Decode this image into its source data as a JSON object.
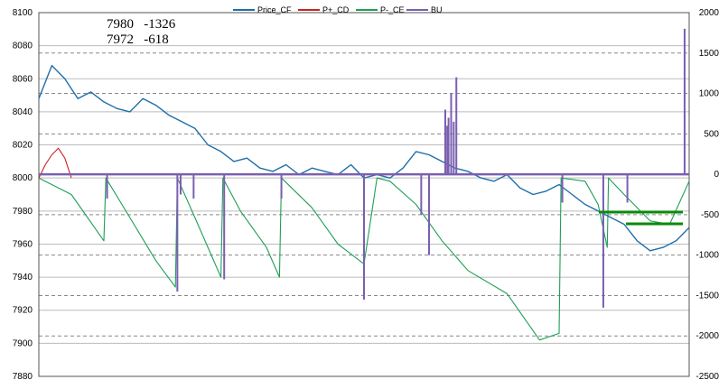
{
  "chart_data": {
    "type": "line",
    "title": "",
    "xlabel": "",
    "ylabel": "",
    "ylim": [
      7880,
      8100
    ],
    "y2lim": [
      -2500,
      2000
    ],
    "left_ticks": [
      "8100",
      "8080",
      "8060",
      "8040",
      "8020",
      "8000",
      "7980",
      "7960",
      "7940",
      "7920",
      "7900",
      "7880"
    ],
    "right_ticks": [
      "2000",
      "1500",
      "1000",
      "500",
      "0",
      "-500",
      "-1000",
      "-1500",
      "-2000",
      "-2500"
    ],
    "grid": "horizontal dashed",
    "legend_position": "top",
    "legend": [
      {
        "name": "Price_CF",
        "color": "#1f6fa8"
      },
      {
        "name": "P+_CD",
        "color": "#cc2222"
      },
      {
        "name": "P-_CE",
        "color": "#1e9e55"
      },
      {
        "name": "BU",
        "color": "#7a5fb0"
      }
    ],
    "annotations": [
      {
        "text": "7980   -1326"
      },
      {
        "text": "7972   -618"
      }
    ],
    "series": [
      {
        "name": "Price_CF",
        "axis": "left",
        "x": [
          0,
          2,
          4,
          6,
          8,
          10,
          12,
          14,
          16,
          18,
          20,
          22,
          24,
          26,
          28,
          30,
          32,
          34,
          36,
          38,
          40,
          42,
          44,
          46,
          48,
          50,
          52,
          54,
          56,
          58,
          60,
          62,
          64,
          66,
          68,
          70,
          72,
          74,
          76,
          78,
          80,
          82,
          84,
          86,
          88,
          90,
          92,
          94,
          96,
          98,
          100
        ],
        "values": [
          8048,
          8068,
          8060,
          8048,
          8052,
          8046,
          8042,
          8040,
          8048,
          8044,
          8038,
          8034,
          8030,
          8020,
          8016,
          8010,
          8012,
          8006,
          8004,
          8008,
          8002,
          8006,
          8004,
          8002,
          8008,
          8000,
          8002,
          8000,
          8006,
          8016,
          8014,
          8010,
          8006,
          8004,
          8000,
          7998,
          8002,
          7994,
          7990,
          7992,
          7996,
          7990,
          7984,
          7980,
          7976,
          7972,
          7962,
          7956,
          7958,
          7962,
          7970
        ]
      },
      {
        "name": "P+_CD",
        "axis": "left",
        "x": [
          0,
          1,
          2,
          3,
          4,
          5
        ],
        "values": [
          8000,
          8008,
          8014,
          8018,
          8012,
          8000
        ]
      },
      {
        "name": "P-_CE",
        "axis": "left",
        "x": [
          0,
          5,
          10,
          10.3,
          14,
          18,
          21,
          21.3,
          24,
          28,
          28.3,
          31,
          35,
          37,
          37.3,
          42,
          46,
          50,
          52,
          54,
          58,
          62,
          66,
          72,
          77,
          80,
          80.3,
          84,
          86,
          87.4,
          87.6,
          90,
          94,
          97,
          100
        ],
        "values": [
          8000,
          7990,
          7962,
          8000,
          7976,
          7950,
          7934,
          8000,
          7976,
          7940,
          8000,
          7980,
          7958,
          7940,
          8000,
          7982,
          7960,
          7948,
          8000,
          7998,
          7984,
          7962,
          7944,
          7930,
          7902,
          7906,
          8000,
          7998,
          7984,
          7958,
          8000,
          7990,
          7974,
          7972,
          7998
        ]
      },
      {
        "name": "BU",
        "axis": "right",
        "type": "bar",
        "x": [
          10.5,
          21.3,
          21.8,
          23.8,
          28.5,
          37.3,
          50,
          58.8,
          60,
          62.5,
          62.8,
          63,
          63.4,
          63.8,
          64.2,
          80.5,
          86.8,
          90.5,
          99.3
        ],
        "values": [
          -300,
          -1450,
          -250,
          -300,
          -1300,
          -300,
          -1550,
          -500,
          -1000,
          800,
          600,
          700,
          1000,
          650,
          1200,
          -350,
          -1650,
          -350,
          1800
        ]
      }
    ]
  }
}
